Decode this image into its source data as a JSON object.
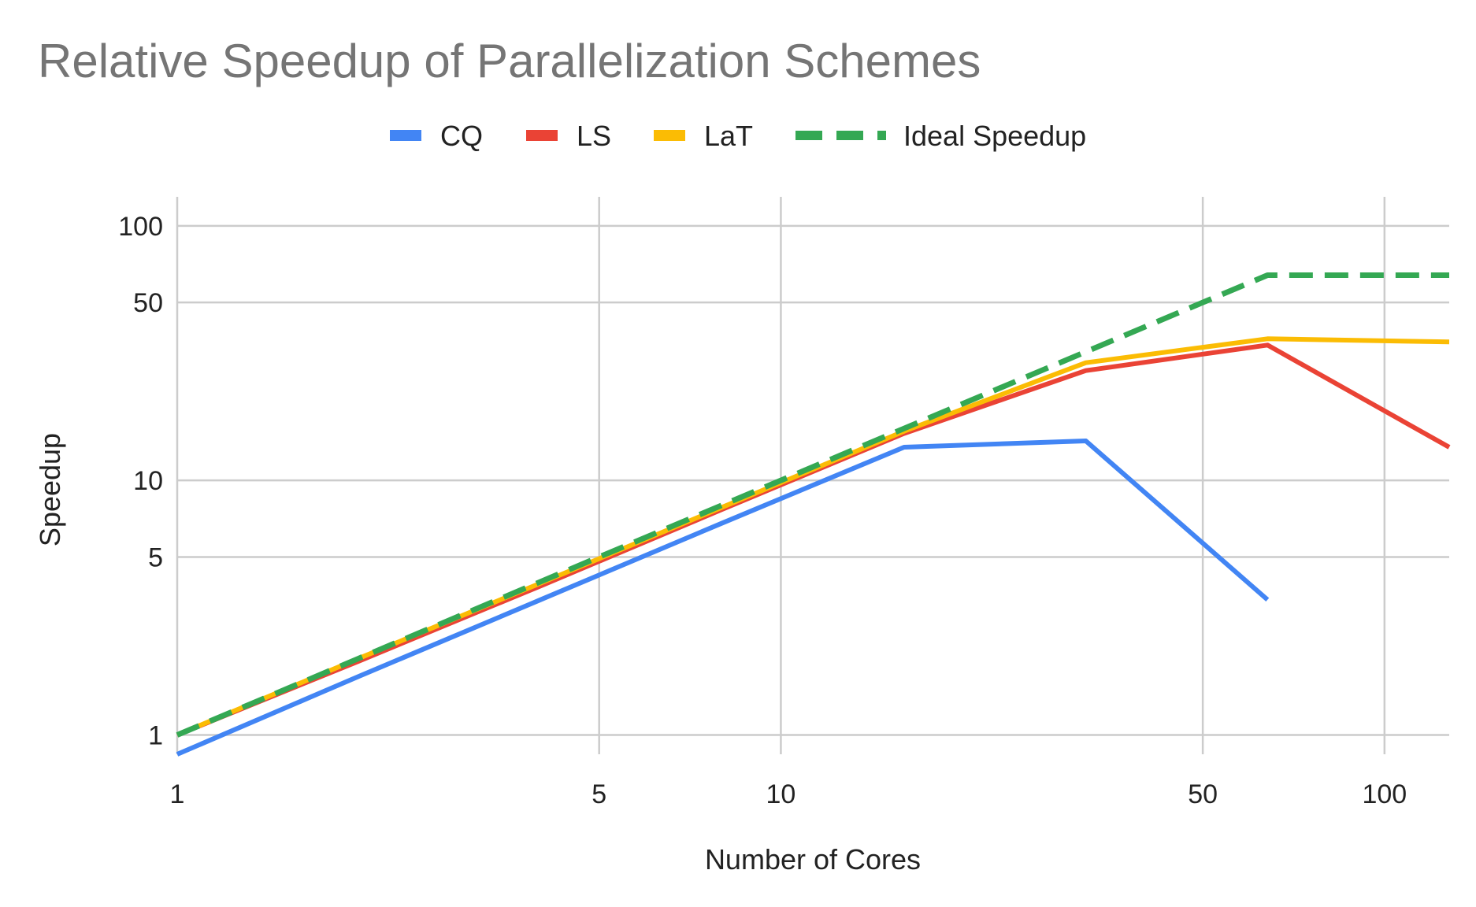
{
  "chart_data": {
    "type": "line",
    "title": "Relative Speedup of Parallelization Schemes",
    "xlabel": "Number of Cores",
    "ylabel": "Speedup",
    "x_scale": "log",
    "y_scale": "log",
    "xlim": [
      1,
      128
    ],
    "ylim": [
      0.84,
      130
    ],
    "x_ticks": [
      1,
      5,
      10,
      50,
      100
    ],
    "y_ticks": [
      1,
      5,
      10,
      50,
      100
    ],
    "grid": true,
    "legend_position": "top",
    "x": [
      1,
      2,
      4,
      8,
      16,
      32,
      64,
      128
    ],
    "series": [
      {
        "name": "CQ",
        "color": "#4285F4",
        "style": "solid",
        "values": [
          0.84,
          1.7,
          3.4,
          6.8,
          13.5,
          14.3,
          3.4,
          null
        ]
      },
      {
        "name": "LS",
        "color": "#EA4335",
        "style": "solid",
        "values": [
          1,
          1.95,
          3.85,
          7.7,
          15.3,
          27,
          34,
          13.5
        ]
      },
      {
        "name": "LaT",
        "color": "#FBBC04",
        "style": "solid",
        "values": [
          1,
          2,
          3.95,
          7.85,
          15.6,
          29,
          36,
          35
        ]
      },
      {
        "name": "Ideal Speedup",
        "color": "#34A853",
        "style": "dashed",
        "values": [
          1,
          2,
          4,
          8,
          16,
          32,
          64,
          64
        ]
      }
    ]
  }
}
